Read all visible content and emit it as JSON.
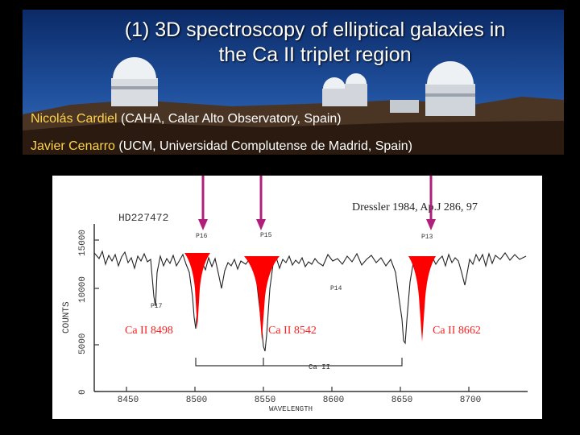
{
  "slide": {
    "title_line1": "(1)  3D spectroscopy of elliptical galaxies in",
    "title_line2": "the Ca II triplet region",
    "authors": [
      {
        "name": "Nicolás Cardiel",
        "affiliation": " (CAHA, Calar Alto Observatory, Spain)"
      },
      {
        "name": "Javier Cenarro",
        "affiliation": " (UCM, Universidad Complutense de Madrid, Spain)"
      }
    ]
  },
  "figure": {
    "star_label": "HD227472",
    "reference": "Dressler 1984,  Ap.J 286,  97",
    "y_axis_label": "COUNTS",
    "x_axis_label": "WAVELENGTH",
    "x_ticks": [
      "8450",
      "8500",
      "8550",
      "8600",
      "8650",
      "8700"
    ],
    "y_ticks": [
      "0",
      "5000",
      "10000",
      "15000"
    ],
    "paschen_labels": [
      "P16",
      "P15",
      "P14",
      "P13",
      "P17"
    ],
    "caii_bracket_label": "Ca II",
    "caii_lines": [
      {
        "label": "Ca II  8498"
      },
      {
        "label": "Ca II  8542"
      },
      {
        "label": "Ca II  8662"
      }
    ]
  },
  "colors": {
    "background": "#000000",
    "title": "#ffffff",
    "author_name": "#ffd44a",
    "arrow": "#b0207a",
    "line_marker": "#ff0000",
    "line_label": "#ff2020"
  }
}
